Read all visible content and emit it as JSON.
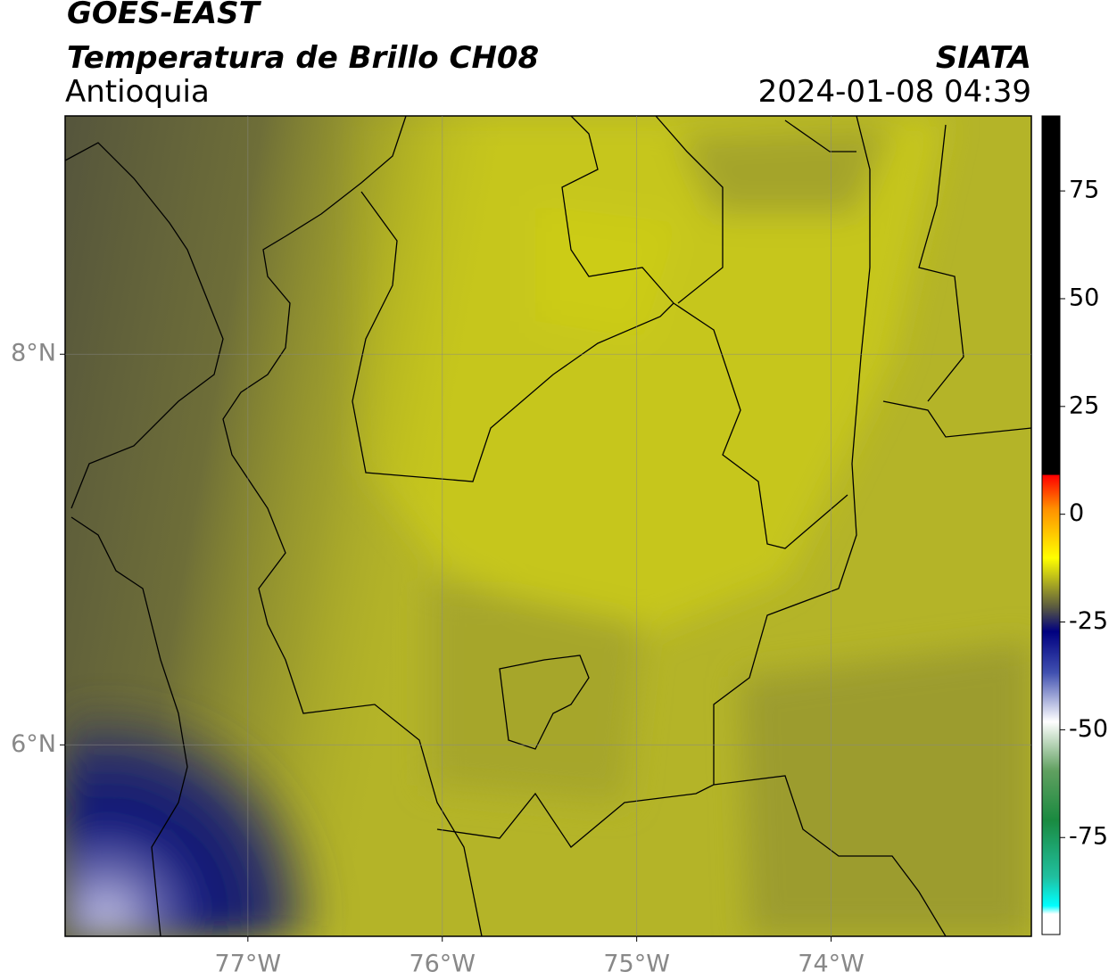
{
  "header": {
    "title": "GOES-EAST",
    "subtitle": "Temperatura de Brillo CH08",
    "region": "Antioquia",
    "source": "SIATA",
    "timestamp": "2024-01-08 04:39"
  },
  "map": {
    "lon_range": [
      -77.94,
      -72.97
    ],
    "lat_range": [
      5.02,
      9.22
    ],
    "lon_ticks": [
      {
        "value": -77,
        "label": "77°W"
      },
      {
        "value": -76,
        "label": "76°W"
      },
      {
        "value": -75,
        "label": "75°W"
      },
      {
        "value": -74,
        "label": "74°W"
      }
    ],
    "lat_ticks": [
      {
        "value": 8,
        "label": "8°N"
      },
      {
        "value": 6,
        "label": "6°N"
      }
    ],
    "grid": true
  },
  "colorbar": {
    "range": [
      -97.5,
      92.4
    ],
    "ticks": [
      75,
      50,
      25,
      0,
      -25,
      -50,
      -75
    ]
  }
}
